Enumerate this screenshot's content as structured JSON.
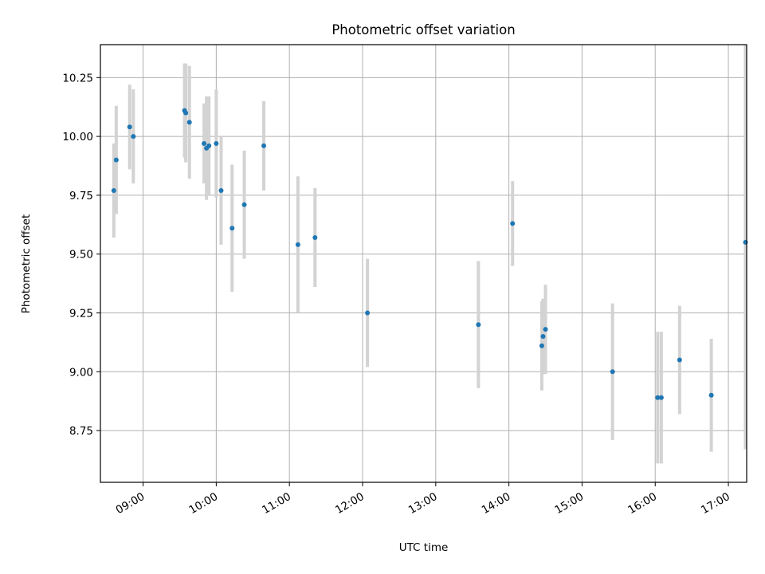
{
  "chart_data": {
    "type": "scatter",
    "title": "Photometric offset variation",
    "xlabel": "UTC time",
    "ylabel": "Photometric offset",
    "x_tick_labels": [
      "09:00",
      "10:00",
      "11:00",
      "12:00",
      "13:00",
      "14:00",
      "15:00",
      "16:00",
      "17:00"
    ],
    "x_ticks": [
      "09:00",
      "10:00",
      "11:00",
      "12:00",
      "13:00",
      "14:00",
      "15:00",
      "16:00",
      "17:00"
    ],
    "y_tick_labels": [
      "8.75",
      "9.00",
      "9.25",
      "9.50",
      "9.75",
      "10.00",
      "10.25"
    ],
    "y_ticks": [
      8.75,
      9.0,
      9.25,
      9.5,
      9.75,
      10.0,
      10.25
    ],
    "xlim": [
      "08:25",
      "17:15"
    ],
    "ylim": [
      8.53,
      10.39
    ],
    "grid": true,
    "point_color": "#1f77b4",
    "errorbar_color": "#d3d3d3",
    "points": [
      {
        "x": "08:36",
        "y": 9.77,
        "err": 0.2
      },
      {
        "x": "08:38",
        "y": 9.9,
        "err": 0.23
      },
      {
        "x": "08:49",
        "y": 10.04,
        "err": 0.18
      },
      {
        "x": "08:52",
        "y": 10.0,
        "err": 0.2
      },
      {
        "x": "09:34",
        "y": 10.11,
        "err": 0.2
      },
      {
        "x": "09:35",
        "y": 10.1,
        "err": 0.21
      },
      {
        "x": "09:38",
        "y": 10.06,
        "err": 0.24
      },
      {
        "x": "09:50",
        "y": 9.97,
        "err": 0.17
      },
      {
        "x": "09:52",
        "y": 9.95,
        "err": 0.22
      },
      {
        "x": "09:54",
        "y": 9.96,
        "err": 0.21
      },
      {
        "x": "10:00",
        "y": 9.97,
        "err": 0.23
      },
      {
        "x": "10:04",
        "y": 9.77,
        "err": 0.23
      },
      {
        "x": "10:13",
        "y": 9.61,
        "err": 0.27
      },
      {
        "x": "10:23",
        "y": 9.71,
        "err": 0.23
      },
      {
        "x": "10:39",
        "y": 9.96,
        "err": 0.19
      },
      {
        "x": "11:07",
        "y": 9.54,
        "err": 0.29
      },
      {
        "x": "11:21",
        "y": 9.57,
        "err": 0.21
      },
      {
        "x": "12:04",
        "y": 9.25,
        "err": 0.23
      },
      {
        "x": "13:35",
        "y": 9.2,
        "err": 0.27
      },
      {
        "x": "14:03",
        "y": 9.63,
        "err": 0.18
      },
      {
        "x": "14:27",
        "y": 9.11,
        "err": 0.19
      },
      {
        "x": "14:28",
        "y": 9.15,
        "err": 0.16
      },
      {
        "x": "14:30",
        "y": 9.18,
        "err": 0.19
      },
      {
        "x": "15:25",
        "y": 9.0,
        "err": 0.29
      },
      {
        "x": "16:02",
        "y": 8.89,
        "err": 0.28
      },
      {
        "x": "16:05",
        "y": 8.89,
        "err": 0.28
      },
      {
        "x": "16:20",
        "y": 9.05,
        "err": 0.23
      },
      {
        "x": "16:46",
        "y": 8.9,
        "err": 0.24
      },
      {
        "x": "17:14",
        "y": 9.55,
        "err": 0.88
      }
    ]
  }
}
